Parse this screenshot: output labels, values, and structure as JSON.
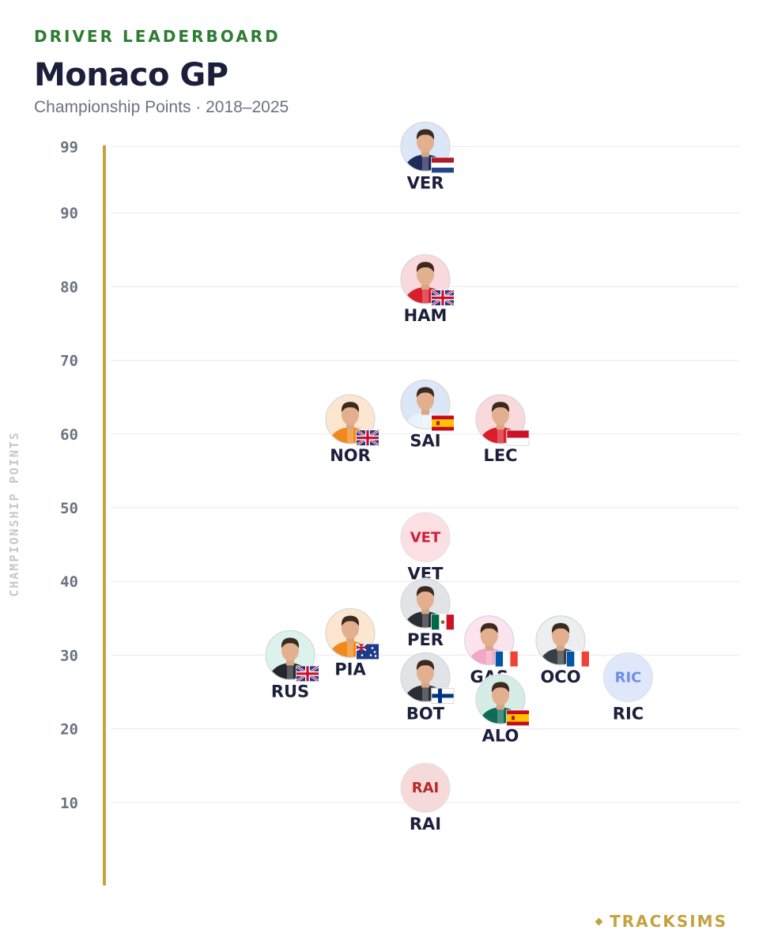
{
  "header": {
    "eyebrow": "DRIVER LEADERBOARD",
    "title": "Monaco GP",
    "subtitle": "Championship Points · 2018–2025"
  },
  "footer": {
    "brand": "TRACKSIMS"
  },
  "chart_data": {
    "type": "scatter",
    "title": "Monaco GP",
    "subtitle": "Championship Points · 2018–2025",
    "ylabel": "CHAMPIONSHIP POINTS",
    "xlabel": "",
    "ylim": [
      0,
      99
    ],
    "yticks": [
      10,
      20,
      30,
      40,
      50,
      60,
      70,
      80,
      90,
      99
    ],
    "grid": true,
    "points": [
      {
        "code": "VER",
        "value": 99,
        "slot": 0,
        "bg": "#dbe6f7",
        "suit": "#1e2a5a",
        "flag": "nl",
        "photo": true
      },
      {
        "code": "HAM",
        "value": 81,
        "slot": 0,
        "bg": "#f9d9db",
        "suit": "#d81e2a",
        "flag": "gb",
        "photo": true
      },
      {
        "code": "SAI",
        "value": 64,
        "slot": 0,
        "bg": "#dbe6f7",
        "suit": "#eaf2fb",
        "flag": "es",
        "photo": true
      },
      {
        "code": "NOR",
        "value": 62,
        "slot": -1,
        "bg": "#fde6cf",
        "suit": "#f08a1c",
        "flag": "gb",
        "photo": true
      },
      {
        "code": "LEC",
        "value": 62,
        "slot": 1,
        "bg": "#f9d9db",
        "suit": "#d81e2a",
        "flag": "mc",
        "photo": true
      },
      {
        "code": "VET",
        "value": 46,
        "slot": 0,
        "bg": "#fcdfe3",
        "text": "#d0203a",
        "photo": false
      },
      {
        "code": "PER",
        "value": 37,
        "slot": 0,
        "bg": "#e1e3e6",
        "suit": "#2a2d33",
        "flag": "mx",
        "photo": true
      },
      {
        "code": "PIA",
        "value": 33,
        "slot": -1,
        "bg": "#fde6cf",
        "suit": "#f08a1c",
        "flag": "au",
        "photo": true
      },
      {
        "code": "GAS",
        "value": 32,
        "slot": 0.85,
        "bg": "#fce4ee",
        "suit": "#f2a7c4",
        "flag": "fr",
        "photo": true
      },
      {
        "code": "OCO",
        "value": 32,
        "slot": 1.8,
        "bg": "#eceef0",
        "suit": "#3a3d44",
        "flag": "fr",
        "photo": true
      },
      {
        "code": "RUS",
        "value": 30,
        "slot": -1.8,
        "bg": "#dbf3ec",
        "suit": "#24272d",
        "flag": "gb",
        "photo": true
      },
      {
        "code": "BOT",
        "value": 27,
        "slot": 0,
        "bg": "#e1e3e6",
        "suit": "#2a2d33",
        "flag": "fi",
        "photo": true
      },
      {
        "code": "RIC",
        "value": 27,
        "slot": 2.7,
        "bg": "#dfe7fa",
        "text": "#6f8ee6",
        "photo": false
      },
      {
        "code": "ALO",
        "value": 24,
        "slot": 1,
        "bg": "#d6ece6",
        "suit": "#0f6b58",
        "flag": "es",
        "photo": true
      },
      {
        "code": "RAI",
        "value": 12,
        "slot": 0,
        "bg": "#f6dada",
        "text": "#b62828",
        "photo": false
      }
    ]
  },
  "colors": {
    "accent_green": "#2e7d32",
    "axis_gold": "#c4a23e",
    "title_navy": "#1b1f3b",
    "grid": "#ececef"
  }
}
